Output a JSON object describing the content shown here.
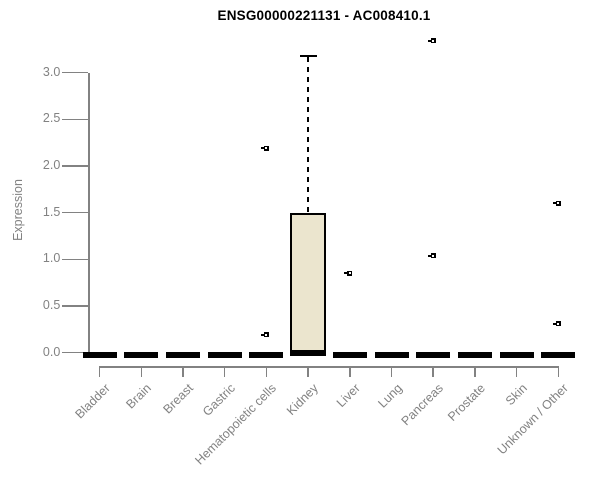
{
  "chart_data": {
    "type": "box",
    "title": "ENSG00000221131 - AC008410.1",
    "ylabel": "Expression",
    "xlabel": "",
    "ylim": [
      0,
      3.35
    ],
    "yticks": [
      "0.0",
      "0.5",
      "1.0",
      "1.5",
      "2.0",
      "2.5",
      "3.0"
    ],
    "grid": false,
    "legend": "none",
    "categories": [
      "Bladder",
      "Brain",
      "Breast",
      "Gastric",
      "Hematopoietic cells",
      "Kidney",
      "Liver",
      "Lung",
      "Pancreas",
      "Prostate",
      "Skin",
      "Unknown / Other"
    ],
    "boxes": [
      {
        "category": "Bladder",
        "q1": 0,
        "median": 0,
        "q3": 0,
        "whisker_low": 0,
        "whisker_high": 0,
        "outliers": []
      },
      {
        "category": "Brain",
        "q1": 0,
        "median": 0,
        "q3": 0,
        "whisker_low": 0,
        "whisker_high": 0,
        "outliers": []
      },
      {
        "category": "Breast",
        "q1": 0,
        "median": 0,
        "q3": 0,
        "whisker_low": 0,
        "whisker_high": 0,
        "outliers": []
      },
      {
        "category": "Gastric",
        "q1": 0,
        "median": 0,
        "q3": 0,
        "whisker_low": 0,
        "whisker_high": 0,
        "outliers": []
      },
      {
        "category": "Hematopoietic cells",
        "q1": 0,
        "median": 0,
        "q3": 0,
        "whisker_low": 0,
        "whisker_high": 0,
        "outliers": [
          2.19,
          0.19
        ]
      },
      {
        "category": "Kidney",
        "q1": 0,
        "median": 0.02,
        "q3": 1.5,
        "whisker_low": 0,
        "whisker_high": 3.18,
        "outliers": []
      },
      {
        "category": "Liver",
        "q1": 0,
        "median": 0,
        "q3": 0,
        "whisker_low": 0,
        "whisker_high": 0,
        "outliers": [
          0.85
        ]
      },
      {
        "category": "Lung",
        "q1": 0,
        "median": 0,
        "q3": 0,
        "whisker_low": 0,
        "whisker_high": 0,
        "outliers": []
      },
      {
        "category": "Pancreas",
        "q1": 0,
        "median": 0,
        "q3": 0,
        "whisker_low": 0,
        "whisker_high": 0,
        "outliers": [
          3.34,
          1.04
        ]
      },
      {
        "category": "Prostate",
        "q1": 0,
        "median": 0,
        "q3": 0,
        "whisker_low": 0,
        "whisker_high": 0,
        "outliers": []
      },
      {
        "category": "Skin",
        "q1": 0,
        "median": 0,
        "q3": 0,
        "whisker_low": 0,
        "whisker_high": 0,
        "outliers": []
      },
      {
        "category": "Unknown / Other",
        "q1": 0,
        "median": 0,
        "q3": 0,
        "whisker_low": 0,
        "whisker_high": 0,
        "outliers": [
          1.6,
          0.31
        ]
      }
    ],
    "colors": {
      "box_fill": "#EBE5CE",
      "box_border": "#000000",
      "median": "#000000",
      "whisker": "#000000",
      "outlier": "#000000",
      "axis": "#828282",
      "tick_label": "#828282",
      "title": "#000000",
      "background": "#FFFFFF"
    }
  }
}
